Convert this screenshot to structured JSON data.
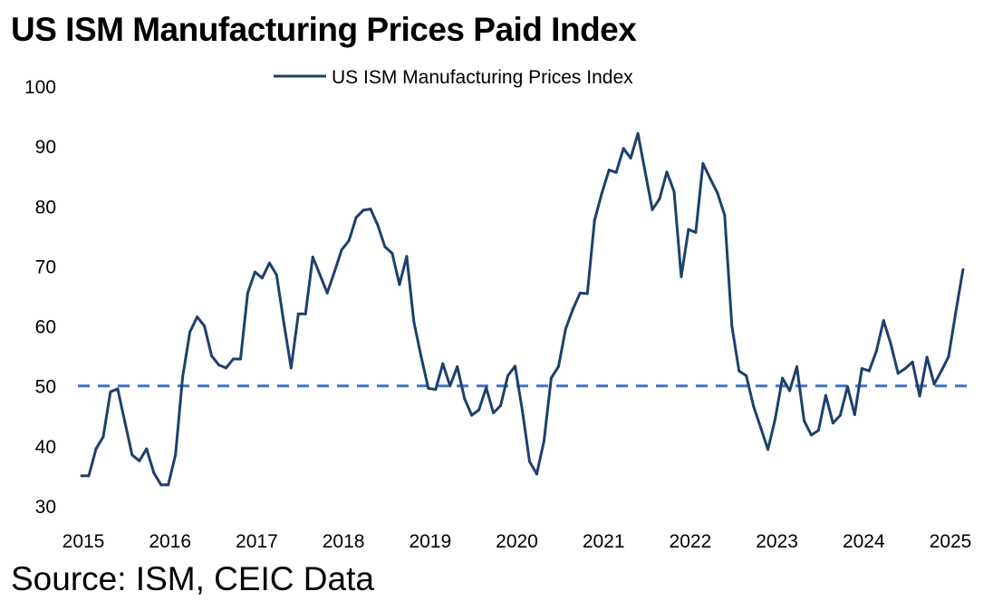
{
  "title": "US ISM Manufacturing Prices Paid Index",
  "source": "Source: ISM, CEIC Data",
  "colors": {
    "series": "#1f3f6e",
    "reference": "#4472c4"
  },
  "chart_data": {
    "type": "line",
    "title": "US ISM Manufacturing Prices Paid Index",
    "xlabel": "",
    "ylabel": "",
    "ylim": [
      30,
      100
    ],
    "yticks": [
      "100",
      "90",
      "80",
      "70",
      "60",
      "50",
      "40",
      "30"
    ],
    "ytick_values": [
      100,
      90,
      80,
      70,
      60,
      50,
      40,
      30
    ],
    "xticks": [
      "2015",
      "2016",
      "2017",
      "2018",
      "2019",
      "2020",
      "2021",
      "2022",
      "2023",
      "2024",
      "2025"
    ],
    "x_start": "2015-01",
    "x_frequency": "monthly",
    "grid": false,
    "legend": {
      "position": "top-center",
      "entries": [
        "US ISM Manufacturing Prices Index"
      ]
    },
    "reference_line": {
      "y": 50,
      "style": "dashed"
    },
    "series": [
      {
        "name": "US ISM Manufacturing Prices Index",
        "values": [
          35.0,
          35.0,
          39.5,
          41.5,
          49.0,
          49.5,
          44.0,
          38.5,
          37.5,
          39.5,
          35.5,
          33.5,
          33.5,
          38.5,
          51.5,
          59.0,
          61.5,
          60.0,
          55.0,
          53.5,
          53.0,
          54.5,
          54.5,
          65.5,
          69.0,
          68.0,
          70.5,
          68.5,
          60.5,
          53.0,
          62.0,
          62.0,
          71.5,
          68.5,
          65.5,
          69.0,
          72.7,
          74.2,
          78.1,
          79.3,
          79.5,
          76.8,
          73.2,
          72.1,
          66.9,
          71.6,
          60.7,
          54.9,
          49.6,
          49.4,
          53.7,
          50.0,
          53.2,
          47.9,
          45.1,
          46.0,
          49.7,
          45.5,
          46.7,
          51.7,
          53.3,
          45.9,
          37.4,
          35.3,
          40.8,
          51.3,
          53.2,
          59.5,
          62.8,
          65.5,
          65.4,
          77.6,
          82.1,
          86.0,
          85.6,
          89.6,
          88.0,
          92.1,
          85.7,
          79.4,
          81.2,
          85.7,
          82.4,
          68.2,
          76.1,
          75.6,
          87.1,
          84.6,
          82.2,
          78.5,
          60.0,
          52.5,
          51.7,
          46.6,
          43.0,
          39.4,
          44.5,
          51.3,
          49.2,
          53.2,
          44.2,
          41.8,
          42.6,
          48.4,
          43.8,
          45.1,
          49.9,
          45.2,
          52.9,
          52.5,
          55.8,
          60.9,
          57.0,
          52.1,
          52.9,
          54.0,
          48.3,
          54.8,
          50.3,
          52.5,
          54.9,
          62.4,
          69.4
        ]
      }
    ]
  }
}
